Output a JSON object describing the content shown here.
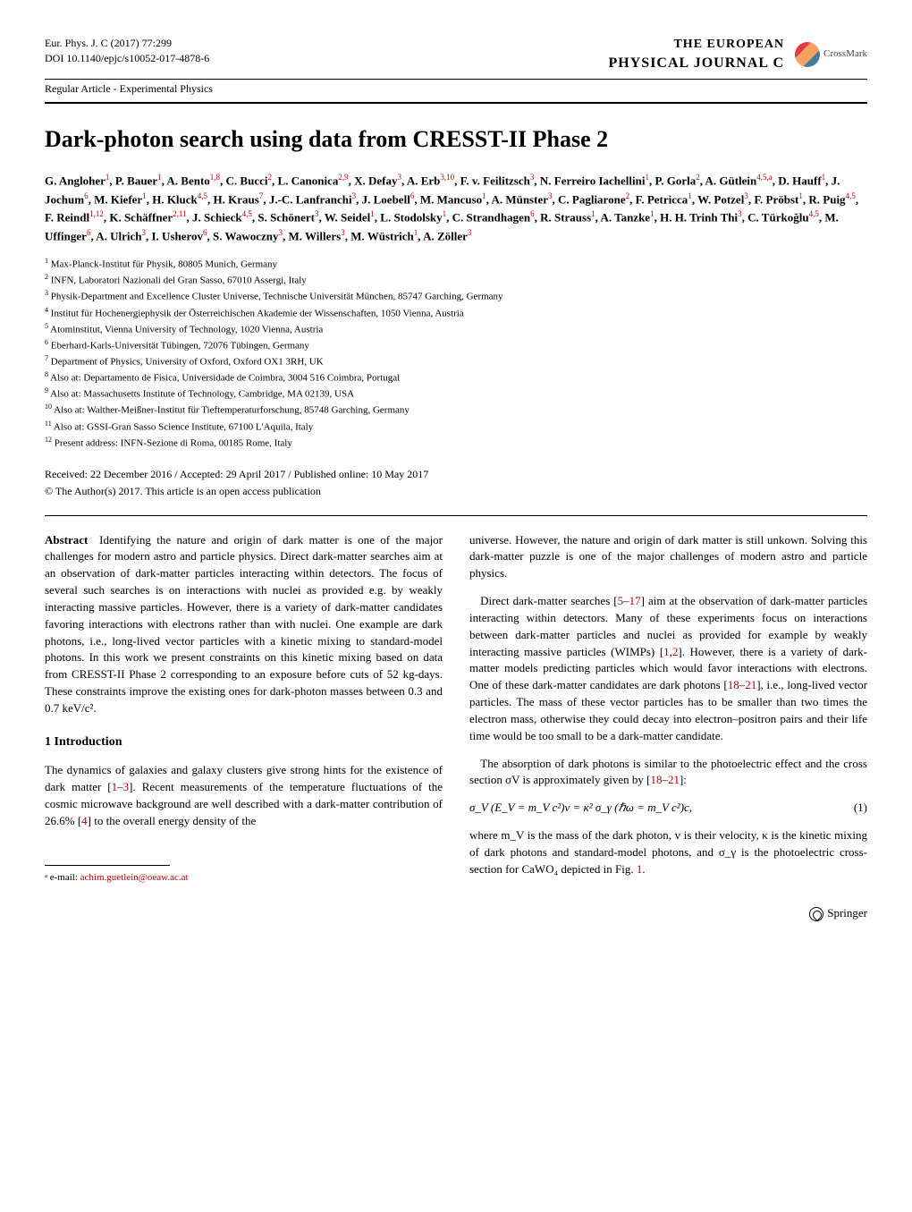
{
  "header": {
    "journal_ref": "Eur. Phys. J. C (2017) 77:299",
    "doi": "DOI 10.1140/epjc/s10052-017-4878-6",
    "journal_top_the": "THE",
    "journal_top_european": "EUROPEAN",
    "journal_bottom_physical": "PHYSICAL",
    "journal_bottom_journal": "JOURNAL",
    "journal_bottom_c": "C",
    "crossmark": "CrossMark",
    "article_type": "Regular Article - Experimental Physics"
  },
  "title": "Dark-photon search using data from CRESST-II Phase 2",
  "authors_html": "<b>G. Angloher</b><sup>1</sup><b>, P. Bauer</b><sup>1</sup><b>, A. Bento</b><sup>1,8</sup><b>, C. Bucci</b><sup>2</sup><b>, L. Canonica</b><sup>2,9</sup><b>, X. Defay</b><sup>3</sup><b>, A. Erb</b><sup>3,10</sup><b>, F. v. Feilitzsch</b><sup>3</sup><b>, N. Ferreiro Iachellini</b><sup>1</sup><b>, P. Gorla</b><sup>2</sup><b>, A. Gütlein</b><sup>4,5,a</sup><b>, D. Hauff</b><sup>1</sup><b>, J. Jochum</b><sup>6</sup><b>, M. Kiefer</b><sup>1</sup><b>, H. Kluck</b><sup>4,5</sup><b>, H. Kraus</b><sup>7</sup><b>, J.-C. Lanfranchi</b><sup>3</sup><b>, J. Loebell</b><sup>6</sup><b>, M. Mancuso</b><sup>1</sup><b>, A. Münster</b><sup>3</sup><b>, C. Pagliarone</b><sup>2</sup><b>, F. Petricca</b><sup>1</sup><b>, W. Potzel</b><sup>3</sup><b>, F. Pröbst</b><sup>1</sup><b>, R. Puig</b><sup>4,5</sup><b>, F. Reindl</b><sup>1,12</sup><b>, K. Schäffner</b><sup>2,11</sup><b>, J. Schieck</b><sup>4,5</sup><b>, S. Schönert</b><sup>3</sup><b>, W. Seidel</b><sup>1</sup><b>, L. Stodolsky</b><sup>1</sup><b>, C. Strandhagen</b><sup>6</sup><b>, R. Strauss</b><sup>1</sup><b>, A. Tanzke</b><sup>1</sup><b>, H. H. Trinh Thi</b><sup>3</sup><b>, C. Türkoğlu</b><sup>4,5</sup><b>, M. Uffinger</b><sup>6</sup><b>, A. Ulrich</b><sup>3</sup><b>, I. Usherov</b><sup>6</sup><b>, S. Wawoczny</b><sup>3</sup><b>, M. Willers</b><sup>3</sup><b>, M. Wüstrich</b><sup>1</sup><b>, A. Zöller</b><sup>3</sup>",
  "affiliations": [
    "Max-Planck-Institut für Physik, 80805 Munich, Germany",
    "INFN, Laboratori Nazionali del Gran Sasso, 67010 Assergi, Italy",
    "Physik-Department and Excellence Cluster Universe, Technische Universität München, 85747 Garching, Germany",
    "Institut für Hochenergiephysik der Österreichischen Akademie der Wissenschaften, 1050 Vienna, Austria",
    "Atominstitut, Vienna University of Technology, 1020 Vienna, Austria",
    "Eberhard-Karls-Universität Tübingen, 72076 Tübingen, Germany",
    "Department of Physics, University of Oxford, Oxford OX1 3RH, UK",
    "Also at: Departamento de Fisica, Universidade de Coimbra, 3004 516 Coimbra, Portugal",
    "Also at: Massachusetts Institute of Technology, Cambridge, MA 02139, USA",
    "Also at: Walther-Meißner-Institut für Tieftemperaturforschung, 85748 Garching, Germany",
    "Also at: GSSI-Gran Sasso Science Institute, 67100 L'Aquila, Italy",
    "Present address: INFN-Sezione di Roma, 00185 Rome, Italy"
  ],
  "dates": "Received: 22 December 2016 / Accepted: 29 April 2017 / Published online: 10 May 2017",
  "license": "© The Author(s) 2017. This article is an open access publication",
  "abstract": {
    "label": "Abstract",
    "text": "Identifying the nature and origin of dark matter is one of the major challenges for modern astro and particle physics. Direct dark-matter searches aim at an observation of dark-matter particles interacting within detectors. The focus of several such searches is on interactions with nuclei as provided e.g. by weakly interacting massive particles. However, there is a variety of dark-matter candidates favoring interactions with electrons rather than with nuclei. One example are dark photons, i.e., long-lived vector particles with a kinetic mixing to standard-model photons. In this work we present constraints on this kinetic mixing based on data from CRESST-II Phase 2 corresponding to an exposure before cuts of 52 kg-days. These constraints improve the existing ones for dark-photon masses between 0.3 and 0.7 keV/c²."
  },
  "section1": {
    "heading": "1 Introduction",
    "p1_a": "The dynamics of galaxies and galaxy clusters give strong hints for the existence of dark matter [",
    "p1_cite1": "1",
    "p1_dash": "–",
    "p1_cite2": "3",
    "p1_b": "]. Recent measurements of the temperature fluctuations of the cosmic microwave background are well described with a dark-matter contribution of 26.6% [",
    "p1_cite3": "4",
    "p1_c": "] to the overall energy density of the"
  },
  "col2": {
    "p1": "universe. However, the nature and origin of dark matter is still unkown. Solving this dark-matter puzzle is one of the major challenges of modern astro and particle physics.",
    "p2_a": "Direct dark-matter searches [",
    "p2_cite1": "5",
    "p2_dash1": "–",
    "p2_cite2": "17",
    "p2_b": "] aim at the observation of dark-matter particles interacting within detectors. Many of these experiments focus on interactions between dark-matter particles and nuclei as provided for example by weakly interacting massive particles (WIMPs) [",
    "p2_cite3": "1",
    "p2_comma": ",",
    "p2_cite4": "2",
    "p2_c": "]. However, there is a variety of dark-matter models predicting particles which would favor interactions with electrons. One of these dark-matter candidates are dark photons [",
    "p2_cite5": "18",
    "p2_dash2": "–",
    "p2_cite6": "21",
    "p2_d": "], i.e., long-lived vector particles. The mass of these vector particles has to be smaller than two times the electron mass, otherwise they could decay into electron–positron pairs and their life time would be too small to be a dark-matter candidate.",
    "p3_a": "The absorption of dark photons is similar to the photoelectric effect and the cross section σV is approximately given by [",
    "p3_cite1": "18",
    "p3_dash": "–",
    "p3_cite2": "21",
    "p3_b": "]:",
    "equation": "σ_V (E_V = m_V c²)v = κ² σ_γ (ℏω = m_V c²)c,",
    "equation_num": "(1)",
    "p4_a": "where m_V is the mass of the dark photon, v is their velocity, κ is the kinetic mixing of dark photons and standard-model photons, and σ_γ is the photoelectric cross-section for CaWO₄ depicted in Fig. ",
    "p4_cite": "1",
    "p4_b": "."
  },
  "footnote": {
    "label": "ᵃ e-mail: ",
    "email": "achim.guetlein@oeaw.ac.at"
  },
  "footer": "Springer",
  "colors": {
    "cite": "#b00000",
    "text": "#000000",
    "background": "#ffffff"
  }
}
